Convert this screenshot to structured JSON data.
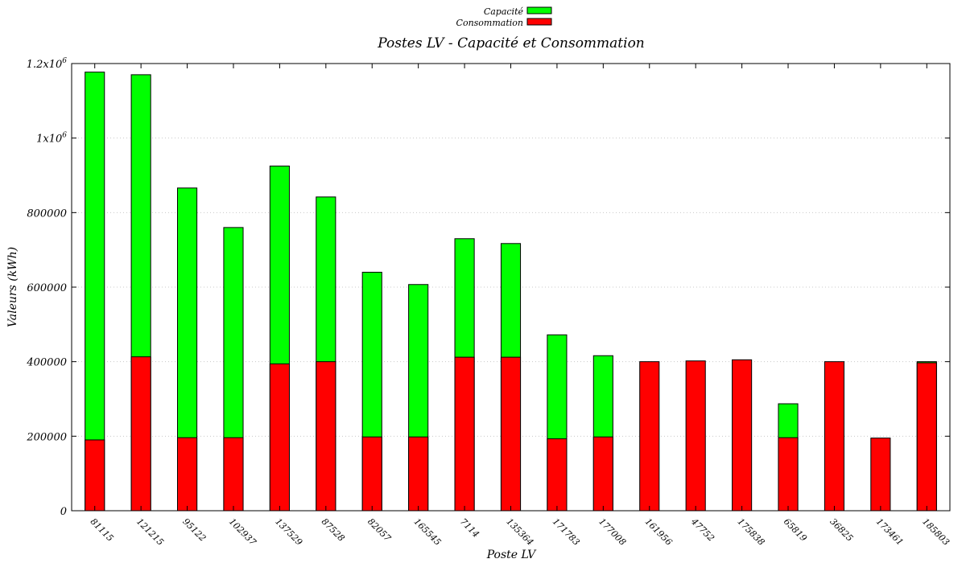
{
  "chart_data": {
    "type": "bar",
    "stacking": "overlay",
    "title": "Postes LV - Capacité et Consommation",
    "xlabel": "Poste LV",
    "ylabel": "Valeurs (kWh)",
    "ylim": [
      0,
      1200000
    ],
    "yticks": [
      {
        "value": 0,
        "label": "0"
      },
      {
        "value": 200000,
        "label": "200000"
      },
      {
        "value": 400000,
        "label": "400000"
      },
      {
        "value": 600000,
        "label": "600000"
      },
      {
        "value": 800000,
        "label": "800000"
      },
      {
        "value": 1000000,
        "label": "1x10",
        "exp": "6"
      },
      {
        "value": 1200000,
        "label": "1.2x10",
        "exp": "6"
      }
    ],
    "grid": true,
    "legend_position": "top-center",
    "categories": [
      "81115",
      "121215",
      "95122",
      "102937",
      "137529",
      "87528",
      "82057",
      "165545",
      "7114",
      "135364",
      "171783",
      "177008",
      "161956",
      "47752",
      "175838",
      "65819",
      "36825",
      "173461",
      "185803"
    ],
    "series": [
      {
        "name": "Capacité",
        "color": "#00ff00",
        "values": [
          1177000,
          1170000,
          866000,
          760000,
          925000,
          842000,
          640000,
          607000,
          730000,
          717000,
          472000,
          416000,
          0,
          0,
          0,
          287000,
          0,
          0,
          400000
        ]
      },
      {
        "name": "Consommation",
        "color": "#ff0000",
        "values": [
          190000,
          413000,
          196000,
          196000,
          394000,
          400000,
          198000,
          198000,
          412000,
          412000,
          193000,
          198000,
          400000,
          402000,
          405000,
          196000,
          400000,
          195000,
          397000
        ]
      }
    ]
  }
}
